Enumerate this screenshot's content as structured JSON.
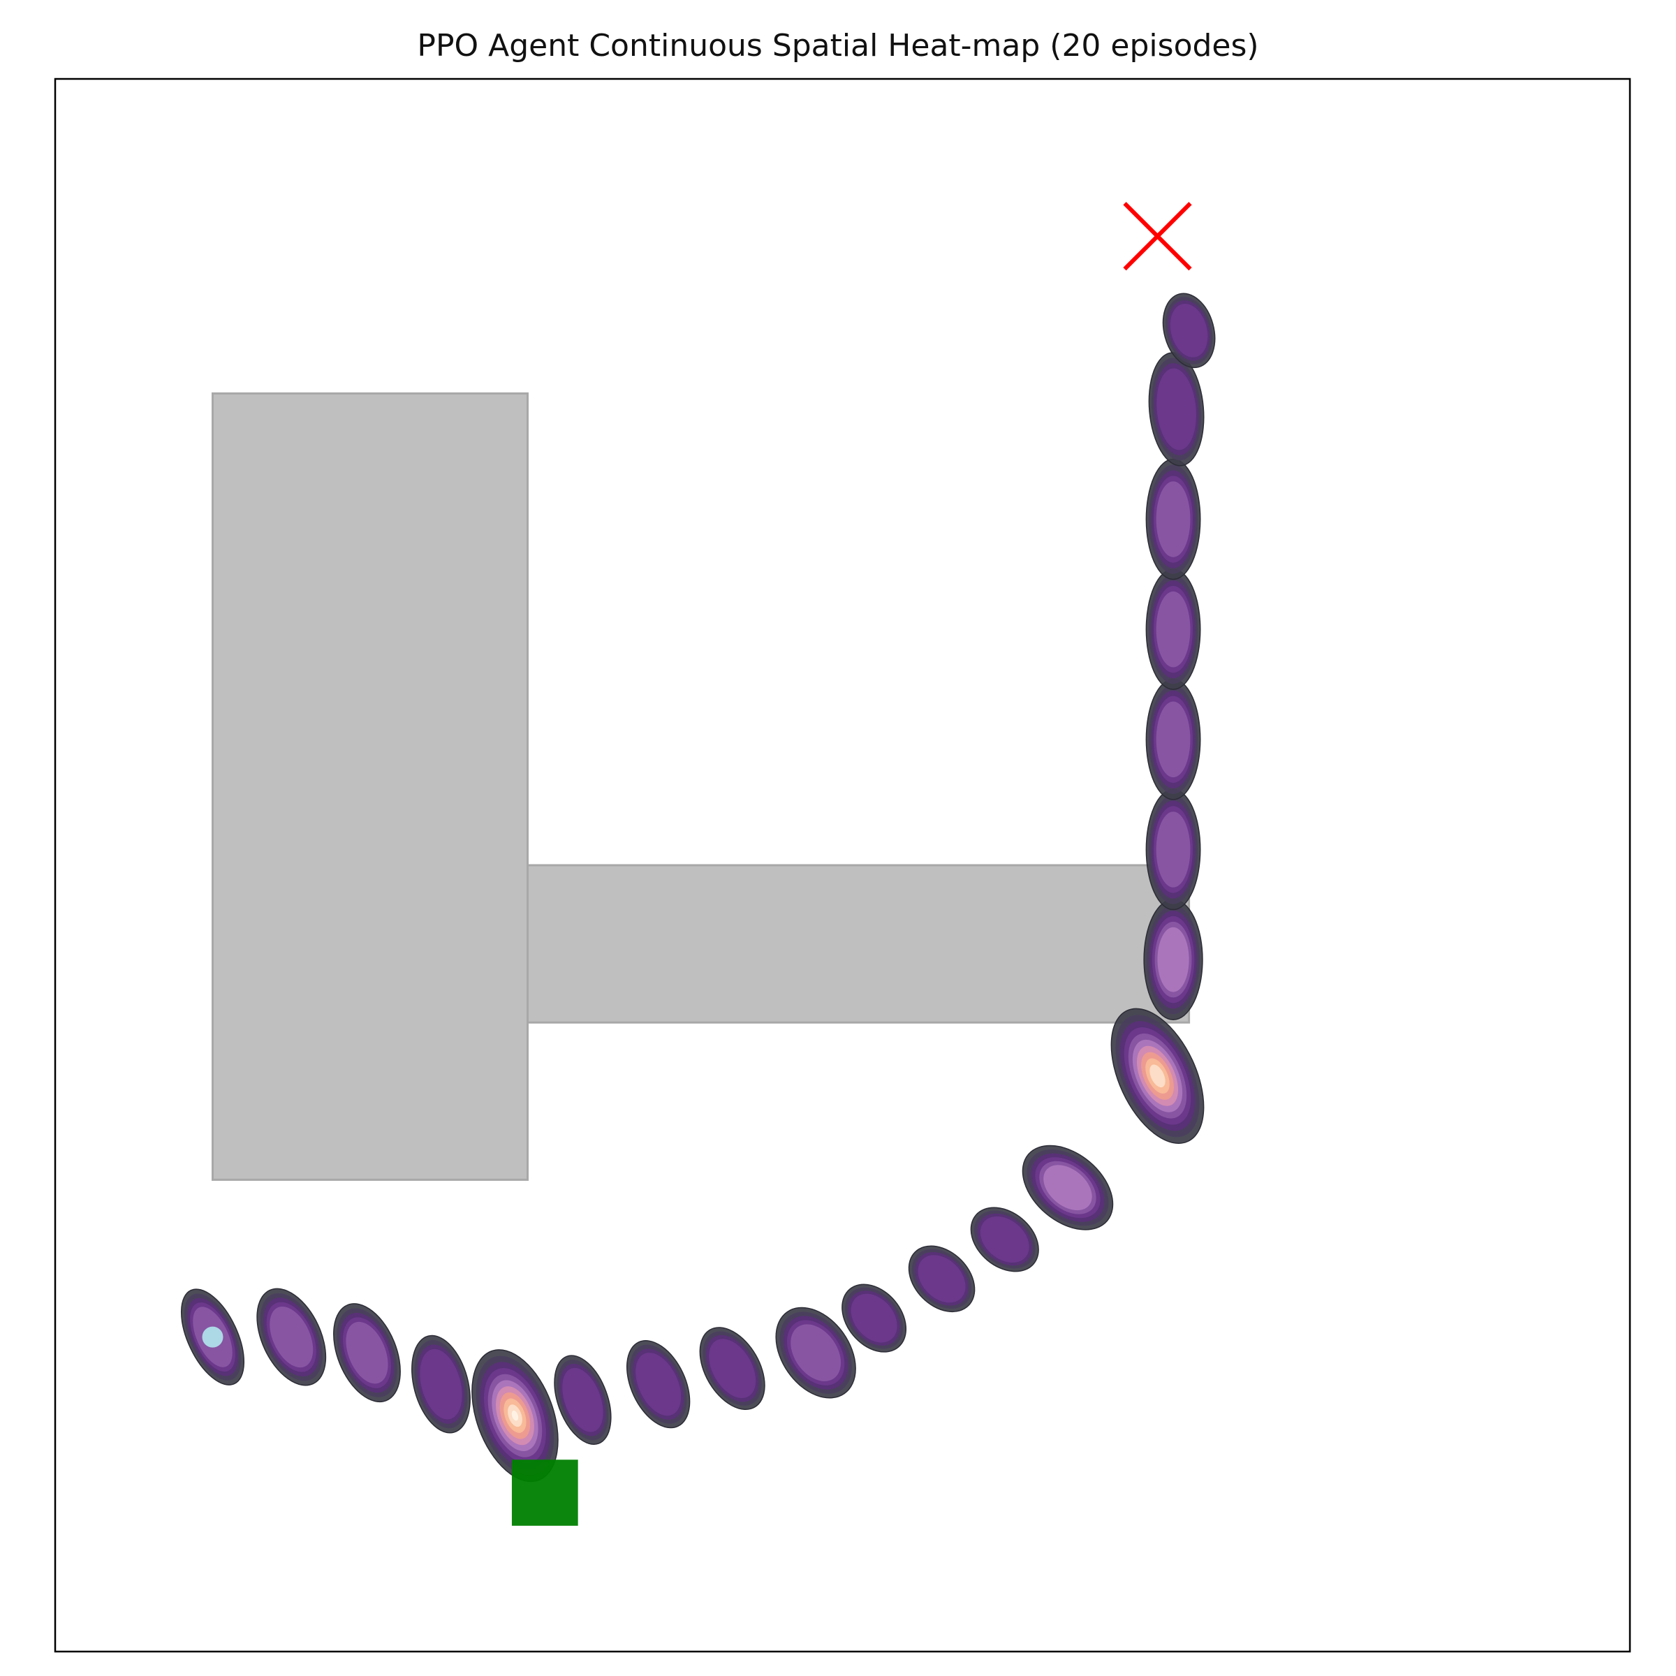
{
  "chart_data": {
    "type": "heatmap",
    "title": "PPO Agent Continuous Spatial Heat-map (20 episodes)",
    "xlabel": "",
    "ylabel": "",
    "xlim": [
      0,
      10
    ],
    "ylim": [
      0,
      10
    ],
    "ticks_visible": false,
    "grid": false,
    "colormap": "magma",
    "obstacles": [
      {
        "name": "tall-block",
        "x": 1,
        "y": 3,
        "w": 2,
        "h": 5
      },
      {
        "name": "horizontal-bar",
        "x": 3,
        "y": 4,
        "w": 4.2,
        "h": 1
      }
    ],
    "obstacle_color": "#bfbfbf",
    "goal_marker": {
      "x": 7.0,
      "y": 9.0,
      "color": "#ff0000"
    },
    "start_marker": {
      "x": 1.0,
      "y": 2.0,
      "color": "#add8e6"
    },
    "end_square": {
      "x": 2.9,
      "y": 0.8,
      "w": 0.42,
      "h": 0.42,
      "color": "#008000"
    },
    "density_peaks": [
      {
        "x": 1.0,
        "y": 2.0,
        "weight": 0.45,
        "sx": 0.11,
        "sy": 0.3,
        "angle": -25
      },
      {
        "x": 1.5,
        "y": 2.0,
        "weight": 0.42,
        "sx": 0.13,
        "sy": 0.3,
        "angle": -25
      },
      {
        "x": 1.98,
        "y": 1.9,
        "weight": 0.42,
        "sx": 0.13,
        "sy": 0.3,
        "angle": -22
      },
      {
        "x": 2.45,
        "y": 1.7,
        "weight": 0.38,
        "sx": 0.12,
        "sy": 0.29,
        "angle": -15
      },
      {
        "x": 2.92,
        "y": 1.5,
        "weight": 1.0,
        "sx": 0.17,
        "sy": 0.4,
        "angle": -20
      },
      {
        "x": 3.35,
        "y": 1.6,
        "weight": 0.35,
        "sx": 0.11,
        "sy": 0.27,
        "angle": -20
      },
      {
        "x": 3.83,
        "y": 1.7,
        "weight": 0.36,
        "sx": 0.12,
        "sy": 0.27,
        "angle": -25
      },
      {
        "x": 4.3,
        "y": 1.8,
        "weight": 0.38,
        "sx": 0.12,
        "sy": 0.26,
        "angle": -30
      },
      {
        "x": 4.83,
        "y": 1.9,
        "weight": 0.48,
        "sx": 0.15,
        "sy": 0.29,
        "angle": -35
      },
      {
        "x": 5.2,
        "y": 2.12,
        "weight": 0.35,
        "sx": 0.12,
        "sy": 0.22,
        "angle": -40
      },
      {
        "x": 5.63,
        "y": 2.37,
        "weight": 0.35,
        "sx": 0.12,
        "sy": 0.22,
        "angle": -45
      },
      {
        "x": 6.03,
        "y": 2.62,
        "weight": 0.38,
        "sx": 0.12,
        "sy": 0.22,
        "angle": -50
      },
      {
        "x": 6.43,
        "y": 2.95,
        "weight": 0.55,
        "sx": 0.15,
        "sy": 0.3,
        "angle": -50
      },
      {
        "x": 7.0,
        "y": 3.66,
        "weight": 0.95,
        "sx": 0.17,
        "sy": 0.42,
        "angle": -25
      },
      {
        "x": 7.1,
        "y": 4.4,
        "weight": 0.55,
        "sx": 0.13,
        "sy": 0.35,
        "angle": 0
      },
      {
        "x": 7.1,
        "y": 5.1,
        "weight": 0.45,
        "sx": 0.12,
        "sy": 0.35,
        "angle": 0
      },
      {
        "x": 7.1,
        "y": 5.8,
        "weight": 0.42,
        "sx": 0.12,
        "sy": 0.35,
        "angle": 0
      },
      {
        "x": 7.1,
        "y": 6.5,
        "weight": 0.42,
        "sx": 0.12,
        "sy": 0.35,
        "angle": 0
      },
      {
        "x": 7.1,
        "y": 7.2,
        "weight": 0.42,
        "sx": 0.12,
        "sy": 0.35,
        "angle": 0
      },
      {
        "x": 7.12,
        "y": 7.9,
        "weight": 0.4,
        "sx": 0.12,
        "sy": 0.33,
        "angle": -5
      },
      {
        "x": 7.2,
        "y": 8.4,
        "weight": 0.36,
        "sx": 0.11,
        "sy": 0.22,
        "angle": -15
      }
    ]
  }
}
